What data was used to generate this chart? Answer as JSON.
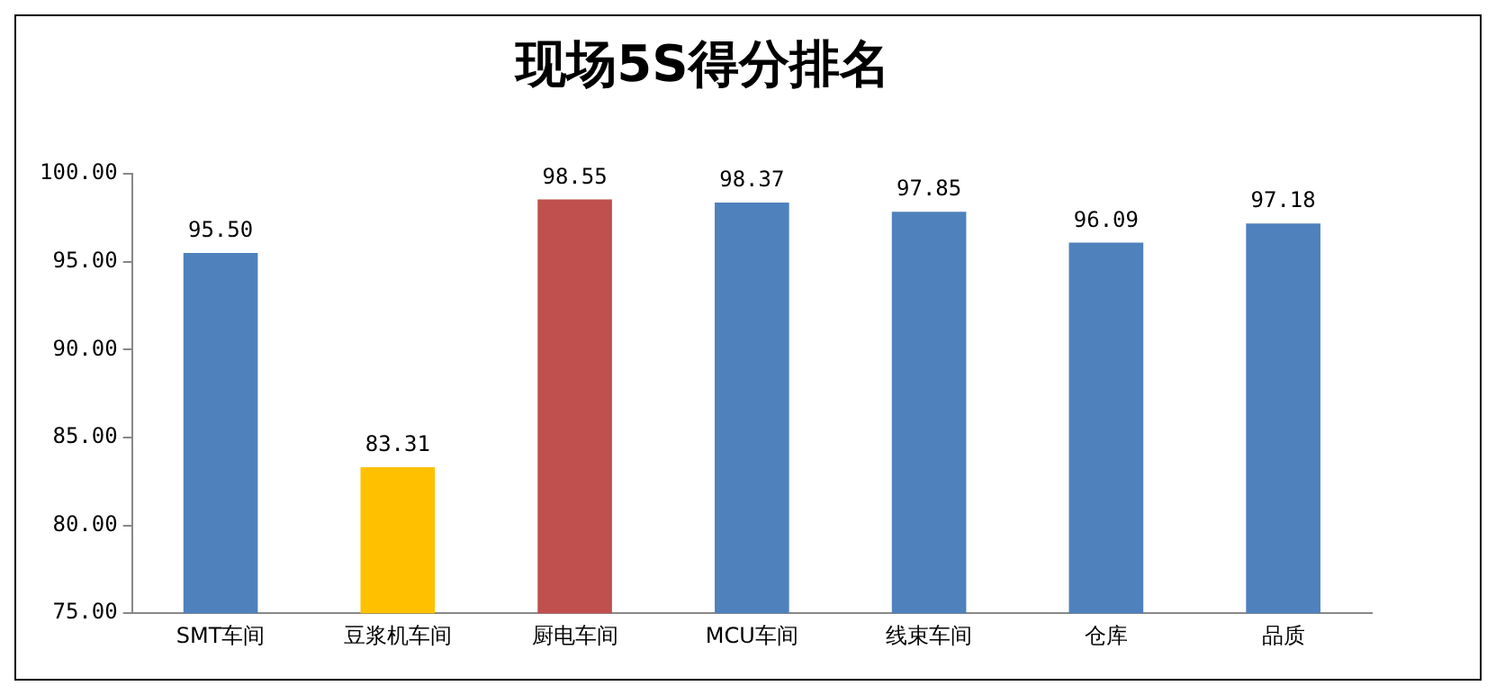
{
  "chart_data": {
    "type": "bar",
    "title": "现场5S得分排名",
    "categories": [
      "SMT车间",
      "豆浆机车间",
      "厨电车间",
      "MCU车间",
      "线束车间",
      "仓库",
      "品质"
    ],
    "values": [
      95.5,
      83.31,
      98.55,
      98.37,
      97.85,
      96.09,
      97.18
    ],
    "value_labels": [
      "95.50",
      "83.31",
      "98.55",
      "98.37",
      "97.85",
      "96.09",
      "97.18"
    ],
    "colors": [
      "#4f81bd",
      "#ffc000",
      "#c0504d",
      "#4f81bd",
      "#4f81bd",
      "#4f81bd",
      "#4f81bd"
    ],
    "ylim": [
      75,
      100
    ],
    "yticks": [
      {
        "value": 75,
        "label": "75.00"
      },
      {
        "value": 80,
        "label": "80.00"
      },
      {
        "value": 85,
        "label": "85.00"
      },
      {
        "value": 90,
        "label": "90.00"
      },
      {
        "value": 95,
        "label": "95.00"
      },
      {
        "value": 100,
        "label": "100.00"
      }
    ],
    "grid": false,
    "legend": false
  }
}
